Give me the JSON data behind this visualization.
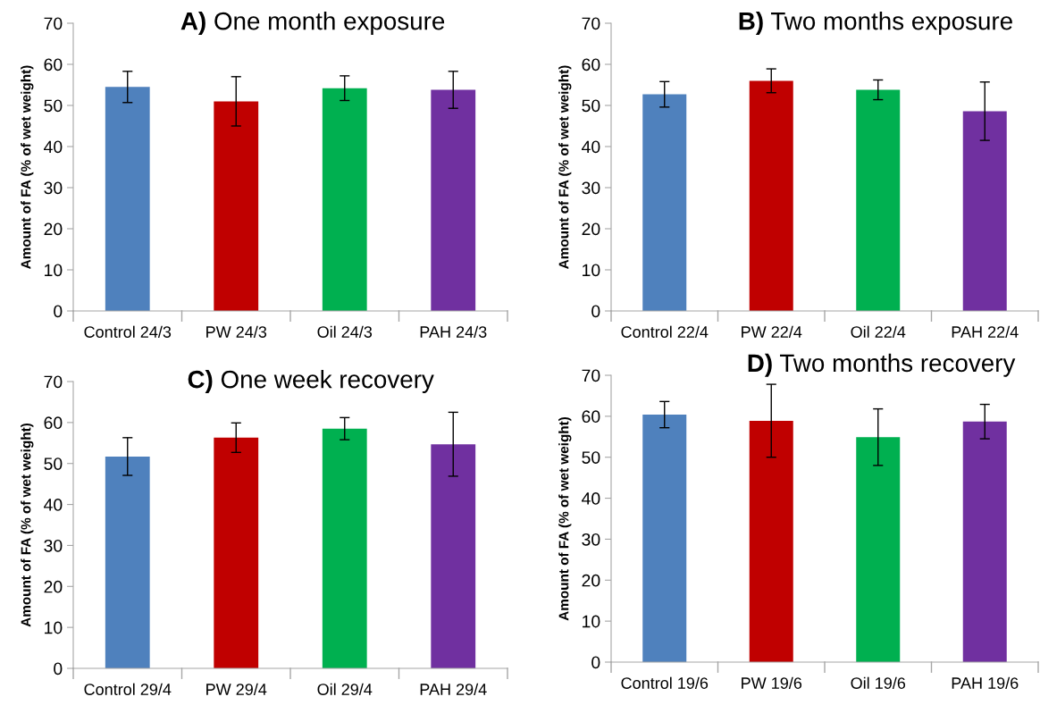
{
  "chart_data": [
    {
      "type": "bar",
      "title": "A) One month exposure",
      "ylabel": "Amount of FA (% of wet weight)",
      "categories": [
        "Control 24/3",
        "PW 24/3",
        "Oil 24/3",
        "PAH 24/3"
      ],
      "values": [
        54.5,
        51.0,
        54.2,
        53.8
      ],
      "errors": [
        3.8,
        6.0,
        3.0,
        4.5
      ],
      "colors": [
        "#4f81bd",
        "#c00000",
        "#00b050",
        "#7030a0"
      ],
      "ylim": [
        0,
        70
      ],
      "yticks": [
        0,
        10,
        20,
        30,
        40,
        50,
        60,
        70
      ],
      "grid": false
    },
    {
      "type": "bar",
      "title": "B) Two months exposure",
      "ylabel": "Amount of FA (% of wet weight)",
      "categories": [
        "Control 22/4",
        "PW 22/4",
        "Oil 22/4",
        "PAH 22/4"
      ],
      "values": [
        52.7,
        56.0,
        53.8,
        48.6
      ],
      "errors": [
        3.1,
        2.9,
        2.4,
        7.1
      ],
      "colors": [
        "#4f81bd",
        "#c00000",
        "#00b050",
        "#7030a0"
      ],
      "ylim": [
        0,
        70
      ],
      "yticks": [
        0,
        10,
        20,
        30,
        40,
        50,
        60,
        70
      ],
      "grid": false
    },
    {
      "type": "bar",
      "title": "C) One week recovery",
      "ylabel": "Amount of FA (% of wet weight)",
      "categories": [
        "Control 29/4",
        "PW 29/4",
        "Oil 29/4",
        "PAH 29/4"
      ],
      "values": [
        51.7,
        56.3,
        58.5,
        54.7
      ],
      "errors": [
        4.6,
        3.6,
        2.7,
        7.8
      ],
      "colors": [
        "#4f81bd",
        "#c00000",
        "#00b050",
        "#7030a0"
      ],
      "ylim": [
        0,
        70
      ],
      "yticks": [
        0,
        10,
        20,
        30,
        40,
        50,
        60,
        70
      ],
      "grid": false
    },
    {
      "type": "bar",
      "title": "D) Two months recovery",
      "ylabel": "Amount of FA (% of wet weight)",
      "categories": [
        "Control 19/6",
        "PW 19/6",
        "Oil 19/6",
        "PAH 19/6"
      ],
      "values": [
        60.4,
        58.9,
        54.9,
        58.7
      ],
      "errors": [
        3.2,
        8.9,
        6.9,
        4.2
      ],
      "colors": [
        "#4f81bd",
        "#c00000",
        "#00b050",
        "#7030a0"
      ],
      "ylim": [
        0,
        70
      ],
      "yticks": [
        0,
        10,
        20,
        30,
        40,
        50,
        60,
        70
      ],
      "grid": false
    }
  ]
}
